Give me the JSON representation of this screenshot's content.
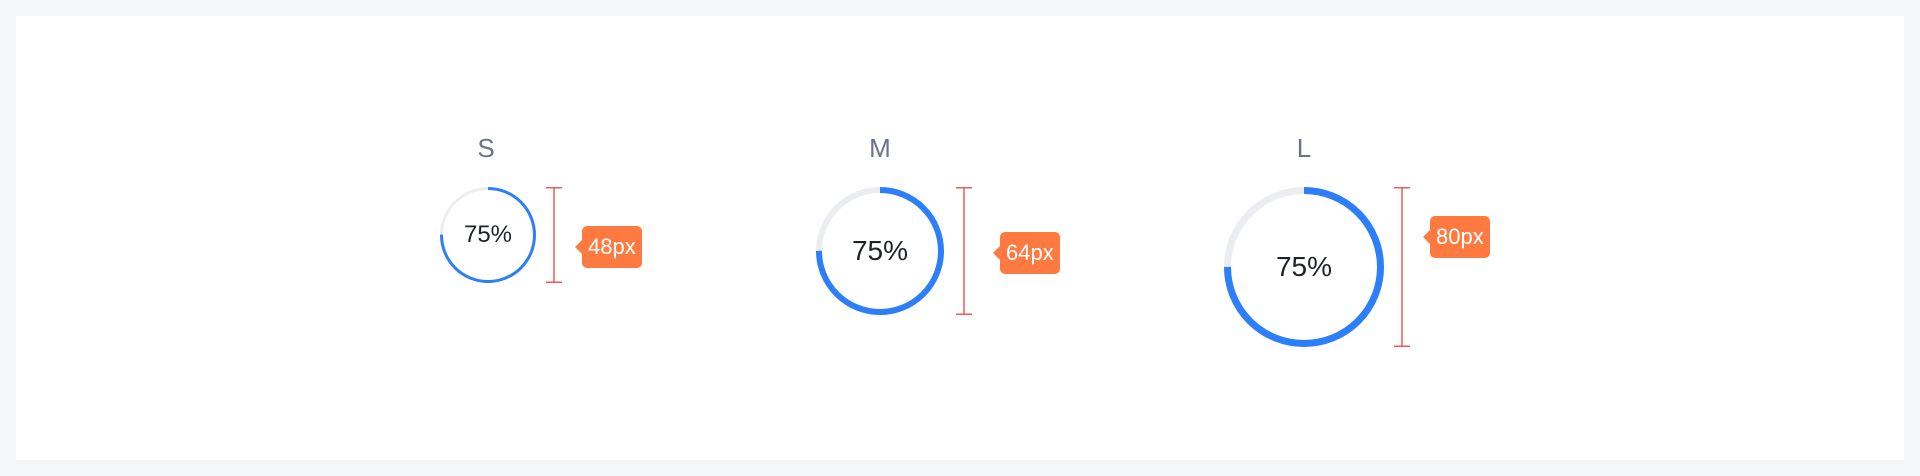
{
  "colors": {
    "progress": "#2d7ff9",
    "track": "#ebedf1",
    "dimension_line": "#f05a5a",
    "tag_background": "#ff7a40",
    "label_text": "#6b7289"
  },
  "progress_percent": 75,
  "sizes": [
    {
      "label": "S",
      "value_text": "75%",
      "dimension": "48px"
    },
    {
      "label": "M",
      "value_text": "75%",
      "dimension": "64px"
    },
    {
      "label": "L",
      "value_text": "75%",
      "dimension": "80px"
    }
  ]
}
